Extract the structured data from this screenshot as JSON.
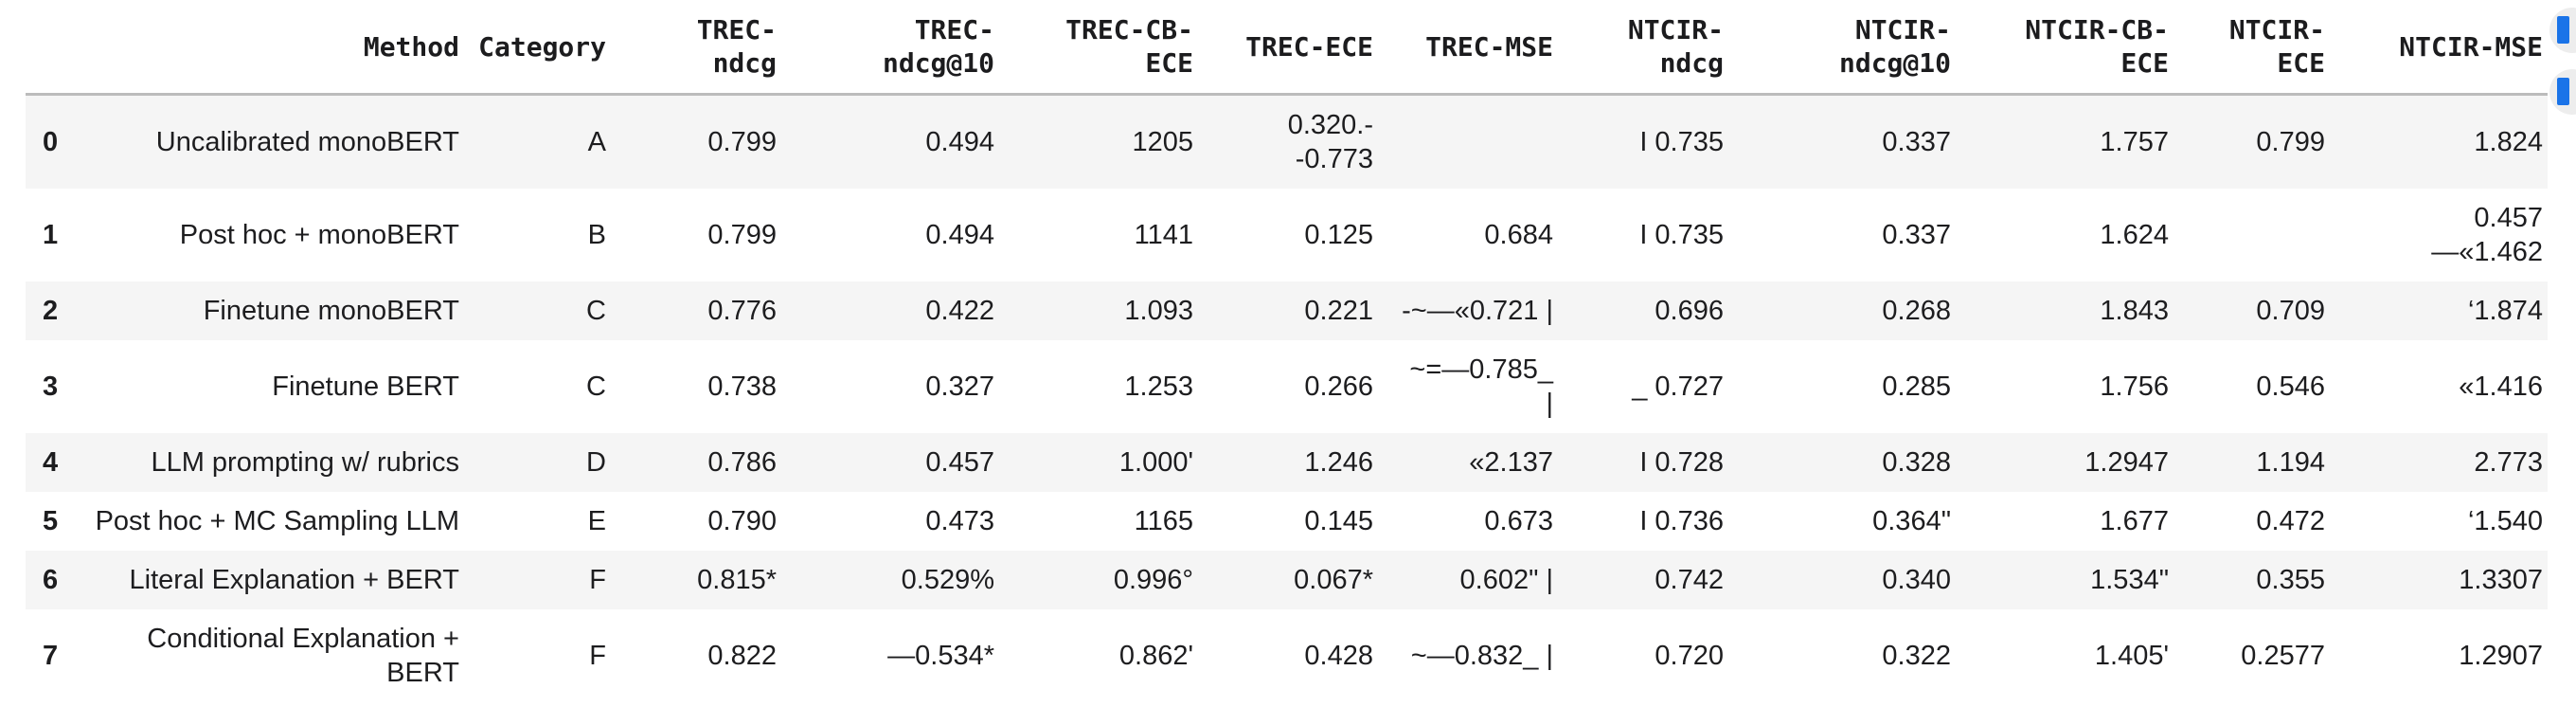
{
  "table": {
    "columns": [
      {
        "key": "index",
        "label": ""
      },
      {
        "key": "method",
        "label": "Method"
      },
      {
        "key": "category",
        "label": "Category"
      },
      {
        "key": "trec_ndcg",
        "label": "TREC-\nndcg"
      },
      {
        "key": "trec_ndcg_10",
        "label": "TREC-\nndcg@10"
      },
      {
        "key": "trec_cb_ece",
        "label": "TREC-CB-\nECE"
      },
      {
        "key": "trec_ece",
        "label": "TREC-ECE"
      },
      {
        "key": "trec_mse",
        "label": "TREC-MSE"
      },
      {
        "key": "ntcir_ndcg",
        "label": "NTCIR-\nndcg"
      },
      {
        "key": "ntcir_ndcg_10",
        "label": "NTCIR-\nndcg@10"
      },
      {
        "key": "ntcir_cb_ece",
        "label": "NTCIR-CB-\nECE"
      },
      {
        "key": "ntcir_ece",
        "label": "NTCIR-\nECE"
      },
      {
        "key": "ntcir_mse",
        "label": "NTCIR-MSE"
      }
    ],
    "rows": [
      [
        "0",
        "Uncalibrated monoBERT",
        "A",
        "0.799",
        "0.494",
        "1205",
        "0.320.-\n-0.773",
        "",
        "I 0.735",
        "0.337",
        "1.757",
        "0.799",
        "1.824"
      ],
      [
        "1",
        "Post hoc + monoBERT",
        "B",
        "0.799",
        "0.494",
        "1141",
        "0.125",
        "0.684",
        "I 0.735",
        "0.337",
        "1.624",
        "",
        "0.457\n—«1.462"
      ],
      [
        "2",
        "Finetune monoBERT",
        "C",
        "0.776",
        "0.422",
        "1.093",
        "0.221",
        "-~—«0.721 |",
        "0.696",
        "0.268",
        "1.843",
        "0.709",
        "‘1.874"
      ],
      [
        "3",
        "Finetune BERT",
        "C",
        "0.738",
        "0.327",
        "1.253",
        "0.266",
        "~=—0.785_\n|",
        "_ 0.727",
        "0.285",
        "1.756",
        "0.546",
        "«1.416"
      ],
      [
        "4",
        "LLM prompting w/ rubrics",
        "D",
        "0.786",
        "0.457",
        "1.000'",
        "1.246",
        "«2.137",
        "I 0.728",
        "0.328",
        "1.2947",
        "1.194",
        "2.773"
      ],
      [
        "5",
        "Post hoc + MC Sampling LLM",
        "E",
        "0.790",
        "0.473",
        "1165",
        "0.145",
        "0.673",
        "I 0.736",
        "0.364\"",
        "1.677",
        "0.472",
        "‘1.540"
      ],
      [
        "6",
        "Literal Explanation + BERT",
        "F",
        "0.815*",
        "0.529%",
        "0.996°",
        "0.067*",
        "0.602\" |",
        "0.742",
        "0.340",
        "1.534\"",
        "0.355",
        "1.3307"
      ],
      [
        "7",
        "Conditional Explanation +\nBERT",
        "F",
        "0.822",
        "—0.534*",
        "0.862'",
        "0.428",
        "~—0.832_ |",
        "0.720",
        "0.322",
        "1.405'",
        "0.2577",
        "1.2907"
      ]
    ]
  },
  "actions": {
    "buttons": [
      {
        "name": "interactive-table-button",
        "icon": "table-icon",
        "accent_color": "#1a73e8"
      },
      {
        "name": "suggested-charts-button",
        "icon": "chart-icon",
        "accent_color": "#1a73e8"
      }
    ]
  },
  "colors": {
    "row_stripe": "#f5f5f5",
    "header_border": "#bcbcbc",
    "text": "#1d1d1f",
    "button_circle": "#ededed",
    "button_accent": "#1a73e8"
  }
}
